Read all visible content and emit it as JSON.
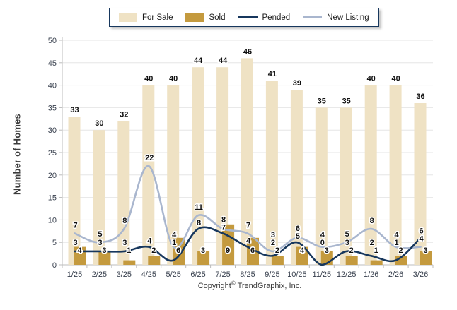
{
  "legend": {
    "border_color": "#17375D",
    "items": [
      {
        "label": "For Sale",
        "swatch": "bar",
        "color": "#EFE2C4"
      },
      {
        "label": "Sold",
        "swatch": "bar",
        "color": "#C49A3E"
      },
      {
        "label": "Pended",
        "swatch": "line",
        "color": "#17375D"
      },
      {
        "label": "New Listing",
        "swatch": "line",
        "color": "#A9B6CE"
      }
    ]
  },
  "y_axis": {
    "title": "Number of Homes"
  },
  "footer": {
    "text_before": "Copyright",
    "symbol": "©",
    "text_after": " TrendGraphix, Inc."
  },
  "chart_data": {
    "type": "combo",
    "title": "",
    "xlabel": "",
    "ylabel": "Number of Homes",
    "ylim": [
      0,
      50
    ],
    "y_ticks": [
      0,
      5,
      10,
      15,
      20,
      25,
      30,
      35,
      40,
      45,
      50
    ],
    "grid": true,
    "legend_position": "top",
    "categories": [
      "1/25",
      "2/25",
      "3/25",
      "4/25",
      "5/25",
      "6/25",
      "7/25",
      "8/25",
      "9/25",
      "10/25",
      "11/25",
      "12/25",
      "1/26",
      "2/26",
      "3/26"
    ],
    "series": [
      {
        "name": "For Sale",
        "type": "bar",
        "color": "#EFE2C4",
        "values": [
          33,
          30,
          32,
          40,
          40,
          44,
          44,
          46,
          41,
          39,
          35,
          35,
          40,
          40,
          36
        ]
      },
      {
        "name": "Sold",
        "type": "bar",
        "color": "#C49A3E",
        "values": [
          4,
          3,
          1,
          2,
          6,
          3,
          9,
          6,
          2,
          4,
          3,
          2,
          1,
          2,
          3
        ]
      },
      {
        "name": "Pended",
        "type": "line",
        "color": "#17375D",
        "values": [
          3,
          3,
          3,
          4,
          1,
          8,
          7,
          4,
          2,
          5,
          0,
          3,
          2,
          1,
          6
        ]
      },
      {
        "name": "New Listing",
        "type": "line",
        "color": "#A9B6CE",
        "values": [
          7,
          5,
          8,
          22,
          4,
          11,
          8,
          7,
          3,
          6,
          4,
          5,
          8,
          4,
          4
        ]
      }
    ],
    "label_color": "#101010",
    "grid_color": "#e6e6e6",
    "axis_color": "#bcbcbc",
    "tick_label_color": "#38404e"
  }
}
